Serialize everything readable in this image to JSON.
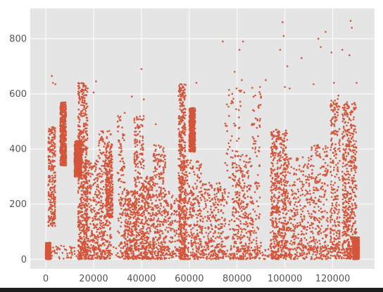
{
  "chart_data": {
    "type": "scatter",
    "title": "",
    "xlabel": "",
    "ylabel": "",
    "xlim": [
      -6500,
      137500
    ],
    "ylim": [
      -35,
      910
    ],
    "x_ticks": [
      0,
      20000,
      40000,
      60000,
      80000,
      100000,
      120000
    ],
    "x_tick_labels": [
      "0",
      "20000",
      "40000",
      "60000",
      "80000",
      "100000",
      "120000"
    ],
    "y_ticks": [
      0,
      200,
      400,
      600,
      800
    ],
    "y_tick_labels": [
      "0",
      "200",
      "400",
      "600",
      "800"
    ],
    "grid": true,
    "legend": "none",
    "style": "ggplot",
    "colors": {
      "background": "#e5e5e5",
      "grid": "#ffffff",
      "points": "#d4553a",
      "text": "#555555"
    },
    "series": [
      {
        "x_range": [
          0,
          131000
        ],
        "bands": [
          {
            "x": [
              0,
              2000
            ],
            "y": [
              0,
              60
            ],
            "density": "high"
          },
          {
            "x": [
              0,
              131000
            ],
            "y": [
              0,
              50
            ],
            "density": "high"
          },
          {
            "x": [
              1000,
              4000
            ],
            "y": [
              120,
              480
            ],
            "density": "medium"
          },
          {
            "x": [
              6000,
              8500
            ],
            "y": [
              340,
              570
            ],
            "density": "high"
          },
          {
            "x": [
              12000,
              15000
            ],
            "y": [
              300,
              430
            ],
            "density": "high"
          },
          {
            "x": [
              13500,
              17500
            ],
            "y": [
              0,
              640
            ],
            "density": "high"
          },
          {
            "x": [
              16000,
              22000
            ],
            "y": [
              0,
              360
            ],
            "density": "medium"
          },
          {
            "x": [
              22000,
              27500
            ],
            "y": [
              0,
              470
            ],
            "density": "medium"
          },
          {
            "x": [
              25000,
              28000
            ],
            "y": [
              150,
              420
            ],
            "density": "medium"
          },
          {
            "x": [
              30000,
              33000
            ],
            "y": [
              0,
              540
            ],
            "density": "low"
          },
          {
            "x": [
              33000,
              38000
            ],
            "y": [
              0,
              250
            ],
            "density": "medium"
          },
          {
            "x": [
              37000,
              41000
            ],
            "y": [
              0,
              520
            ],
            "density": "medium"
          },
          {
            "x": [
              40000,
              45000
            ],
            "y": [
              0,
              300
            ],
            "density": "medium"
          },
          {
            "x": [
              45000,
              50000
            ],
            "y": [
              0,
              420
            ],
            "density": "medium"
          },
          {
            "x": [
              50000,
              55000
            ],
            "y": [
              0,
              250
            ],
            "density": "low"
          },
          {
            "x": [
              55500,
              58500
            ],
            "y": [
              0,
              640
            ],
            "density": "high"
          },
          {
            "x": [
              60000,
              62500
            ],
            "y": [
              390,
              550
            ],
            "density": "high"
          },
          {
            "x": [
              58000,
              65000
            ],
            "y": [
              0,
              360
            ],
            "density": "medium"
          },
          {
            "x": [
              65000,
              75000
            ],
            "y": [
              0,
              280
            ],
            "density": "medium"
          },
          {
            "x": [
              75000,
              82000
            ],
            "y": [
              0,
              620
            ],
            "density": "low"
          },
          {
            "x": [
              78000,
              86000
            ],
            "y": [
              0,
              380
            ],
            "density": "medium"
          },
          {
            "x": [
              86000,
              90000
            ],
            "y": [
              0,
              630
            ],
            "density": "low"
          },
          {
            "x": [
              94000,
              101000
            ],
            "y": [
              0,
              470
            ],
            "density": "high"
          },
          {
            "x": [
              100000,
              110000
            ],
            "y": [
              0,
              370
            ],
            "density": "medium"
          },
          {
            "x": [
              110000,
              118000
            ],
            "y": [
              0,
              420
            ],
            "density": "medium"
          },
          {
            "x": [
              119000,
              123000
            ],
            "y": [
              0,
              600
            ],
            "density": "medium"
          },
          {
            "x": [
              124000,
              130000
            ],
            "y": [
              0,
              570
            ],
            "density": "high"
          },
          {
            "x": [
              128500,
              131000
            ],
            "y": [
              0,
              80
            ],
            "density": "high"
          }
        ],
        "outliers": [
          [
            2500,
            665
          ],
          [
            3000,
            640
          ],
          [
            4000,
            635
          ],
          [
            17500,
            620
          ],
          [
            20000,
            605
          ],
          [
            21000,
            645
          ],
          [
            36000,
            590
          ],
          [
            40000,
            690
          ],
          [
            41000,
            580
          ],
          [
            46000,
            490
          ],
          [
            63000,
            640
          ],
          [
            74000,
            790
          ],
          [
            78000,
            600
          ],
          [
            79000,
            680
          ],
          [
            81000,
            760
          ],
          [
            82000,
            650
          ],
          [
            82500,
            790
          ],
          [
            83000,
            605
          ],
          [
            92000,
            650
          ],
          [
            98000,
            760
          ],
          [
            99000,
            860
          ],
          [
            99500,
            810
          ],
          [
            100000,
            625
          ],
          [
            101000,
            700
          ],
          [
            102000,
            620
          ],
          [
            107000,
            730
          ],
          [
            112000,
            635
          ],
          [
            114000,
            800
          ],
          [
            115000,
            770
          ],
          [
            117000,
            825
          ],
          [
            119500,
            750
          ],
          [
            120500,
            640
          ],
          [
            124000,
            760
          ],
          [
            126000,
            570
          ],
          [
            127000,
            740
          ],
          [
            127500,
            865
          ],
          [
            128000,
            840
          ],
          [
            130000,
            640
          ]
        ]
      }
    ]
  }
}
